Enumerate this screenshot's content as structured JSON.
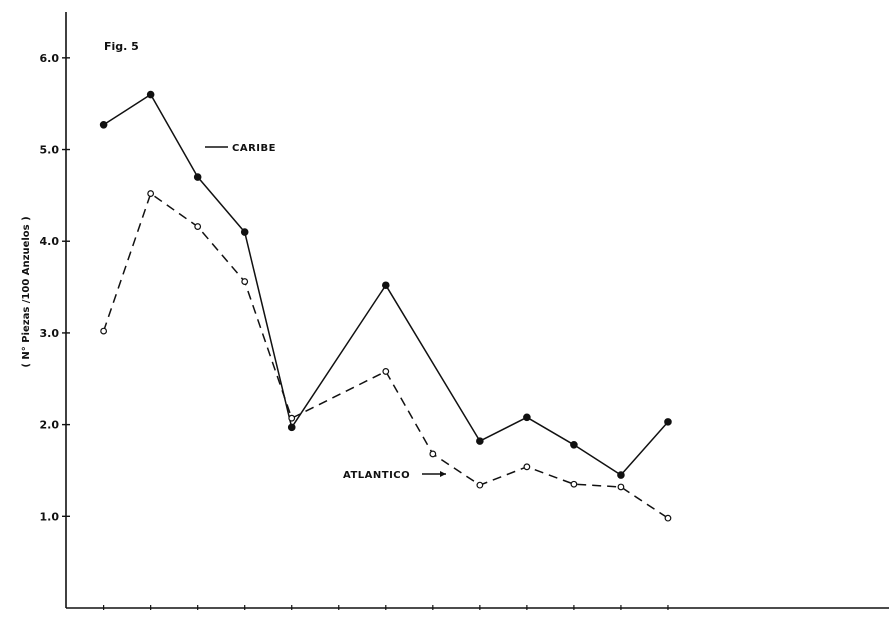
{
  "figure_label": "Fig. 5",
  "colors": {
    "ink": "#111111",
    "paper": "#ffffff"
  },
  "chart_data": {
    "type": "line",
    "title": "",
    "xlabel": "",
    "ylabel": "( N° Piezas /100 Anzuelos )",
    "ylim": [
      0,
      6.5
    ],
    "yticks": [
      1.0,
      2.0,
      3.0,
      4.0,
      5.0,
      6.0
    ],
    "ytick_labels": [
      "1.0",
      "2.0",
      "3.0",
      "4.0",
      "5.0",
      "6.0"
    ],
    "x": [
      1,
      2,
      3,
      4,
      5,
      6,
      7,
      8,
      9,
      10,
      11,
      12,
      13
    ],
    "xlim": [
      0.2,
      17.7
    ],
    "xticks": [
      1,
      2,
      3,
      4,
      5,
      6,
      7,
      8,
      9,
      10,
      11,
      12,
      13
    ],
    "grid": false,
    "series": [
      {
        "name": "CARIBE",
        "line_style": "solid",
        "marker": "filled-circle",
        "x": [
          1,
          2,
          3,
          4,
          5,
          7,
          9,
          10,
          11,
          12,
          13
        ],
        "values": [
          5.27,
          5.6,
          4.7,
          4.1,
          1.97,
          3.52,
          1.82,
          2.08,
          1.78,
          1.45,
          2.03
        ]
      },
      {
        "name": "ATLANTICO",
        "line_style": "dashed",
        "marker": "open-circle",
        "x": [
          1,
          2,
          3,
          4,
          5,
          7,
          8,
          9,
          10,
          11,
          12,
          13
        ],
        "values": [
          3.02,
          4.52,
          4.16,
          3.56,
          2.07,
          2.58,
          1.68,
          1.34,
          1.54,
          1.35,
          1.32,
          0.98
        ]
      }
    ]
  }
}
